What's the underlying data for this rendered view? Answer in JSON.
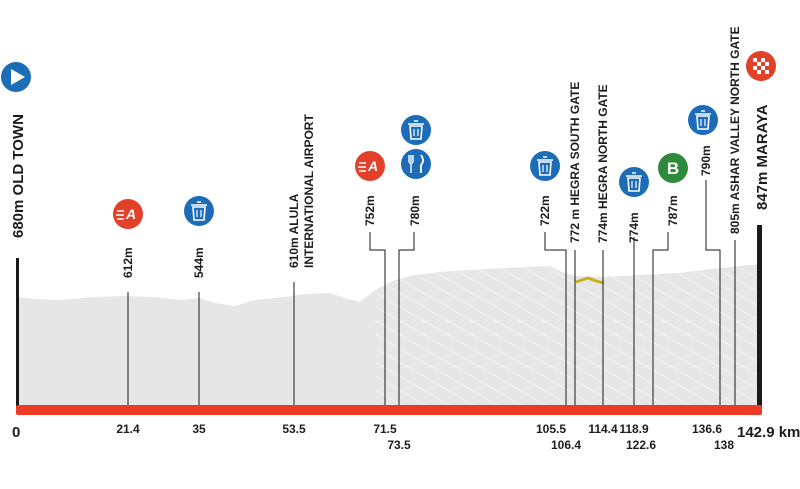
{
  "start": {
    "name": "680m OLD TOWN",
    "icon": "start-play-icon",
    "km": "0"
  },
  "finish": {
    "name": "847m MARAYA",
    "icon": "finish-checkered-flag-icon",
    "km": "142.9 km"
  },
  "colors": {
    "baseline": "#ec3b24",
    "terrain": "#e6e6e6",
    "terrain_texture": "#ffffff",
    "line": "#1a1a1a",
    "sprint": "#e3402a",
    "feed": "#1d6cb7",
    "bonus": "#2e8b3d",
    "gravel": "#c8b11e"
  },
  "points": [
    {
      "id": "sprint-1",
      "label": "612m",
      "km": "21.4",
      "icons": [
        "sprint-icon"
      ]
    },
    {
      "id": "feed-1",
      "label": "544m",
      "km": "35",
      "icons": [
        "feed-bin-icon"
      ]
    },
    {
      "id": "airport",
      "label_lines": [
        "610m ALULA",
        "INTERNATIONAL AIRPORT"
      ],
      "km": "53.5",
      "icons": []
    },
    {
      "id": "sprint-2",
      "label": "752m",
      "km": "71.5",
      "icons": [
        "sprint-icon"
      ]
    },
    {
      "id": "feed-2",
      "label": "780m",
      "km": "73.5",
      "icons": [
        "feed-bin-icon",
        "food-zone-icon"
      ]
    },
    {
      "id": "feed-3",
      "label": "722m",
      "km": "105.5",
      "icons": [
        "feed-bin-icon"
      ]
    },
    {
      "id": "hegra-south",
      "label": "772 m HEGRA SOUTH GATE",
      "km": "106.4",
      "icons": []
    },
    {
      "id": "hegra-north",
      "label": "774m HEGRA NORTH GATE",
      "km": "114.4",
      "icons": []
    },
    {
      "id": "feed-4",
      "label": "774m",
      "km": "118.9",
      "icons": [
        "feed-bin-icon"
      ]
    },
    {
      "id": "bonus",
      "label": "787m",
      "km": "122.6",
      "icons": [
        "bonus-sprint-icon"
      ],
      "icon_text": "B"
    },
    {
      "id": "feed-5",
      "label": "790m",
      "km": "136.6",
      "icons": [
        "feed-bin-icon"
      ]
    },
    {
      "id": "ashar",
      "label": "805m ASHAR VALLEY NORTH GATE",
      "km": "138",
      "icons": []
    }
  ],
  "icon_letters": {
    "sprint": "A",
    "bonus": "B"
  }
}
